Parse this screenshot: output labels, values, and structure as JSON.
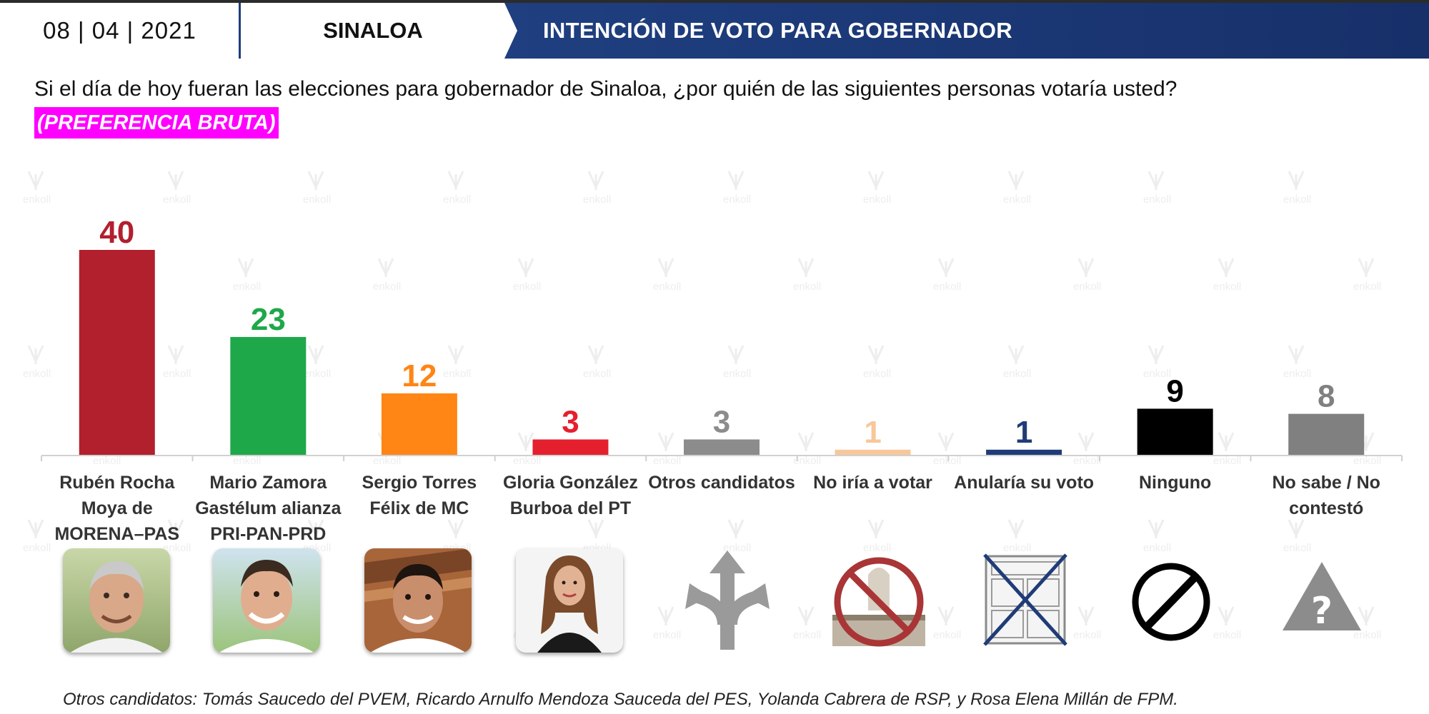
{
  "header": {
    "date": "08 | 04 | 2021",
    "state": "SINALOA",
    "title": "INTENCIÓN DE VOTO PARA GOBERNADOR"
  },
  "question": "Si el día de hoy fueran las elecciones para gobernador de Sinaloa, ¿por quién de las siguientes personas votaría usted?",
  "tag": "(PREFERENCIA BRUTA)",
  "watermark_text": "enkoll",
  "chart_data": {
    "type": "bar",
    "categories": [
      "Rubén Rocha Moya de MORENA–PAS",
      "Mario Zamora Gastélum alianza PRI-PAN-PRD",
      "Sergio Torres Félix de MC",
      "Gloria González Burboa del PT",
      "Otros candidatos",
      "No iría a votar",
      "Anularía su voto",
      "Ninguno",
      "No sabe / No contestó"
    ],
    "category_lines": [
      [
        "Rubén Rocha",
        "Moya de",
        "MORENA–PAS"
      ],
      [
        "Mario Zamora",
        "Gastélum alianza",
        "PRI-PAN-PRD"
      ],
      [
        "Sergio Torres",
        "Félix de MC"
      ],
      [
        "Gloria González",
        "Burboa del PT"
      ],
      [
        "Otros candidatos"
      ],
      [
        "No iría a votar"
      ],
      [
        "Anularía su voto"
      ],
      [
        "Ninguno"
      ],
      [
        "No sabe / No",
        "contestó"
      ]
    ],
    "values": [
      40,
      23,
      12,
      3,
      3,
      1,
      1,
      9,
      8
    ],
    "colors": [
      "#b21f2d",
      "#1ea84a",
      "#ff8514",
      "#e5202e",
      "#8c8c8c",
      "#f7c79b",
      "#1f3c78",
      "#000000",
      "#808080"
    ],
    "ylim": [
      0,
      40
    ],
    "grid": false,
    "legend": "none"
  },
  "icons": [
    "candidate-photo-ruben-rocha",
    "candidate-photo-mario-zamora",
    "candidate-photo-sergio-torres",
    "candidate-photo-gloria-gonzalez",
    "split-arrows-icon",
    "no-voting-icon",
    "crossed-ballot-icon",
    "prohibition-icon",
    "question-triangle-icon"
  ],
  "footnote": "Otros candidatos: Tomás Saucedo del PVEM, Ricardo Arnulfo Mendoza Sauceda del PES, Yolanda Cabrera de RSP, y Rosa Elena Millán de FPM."
}
